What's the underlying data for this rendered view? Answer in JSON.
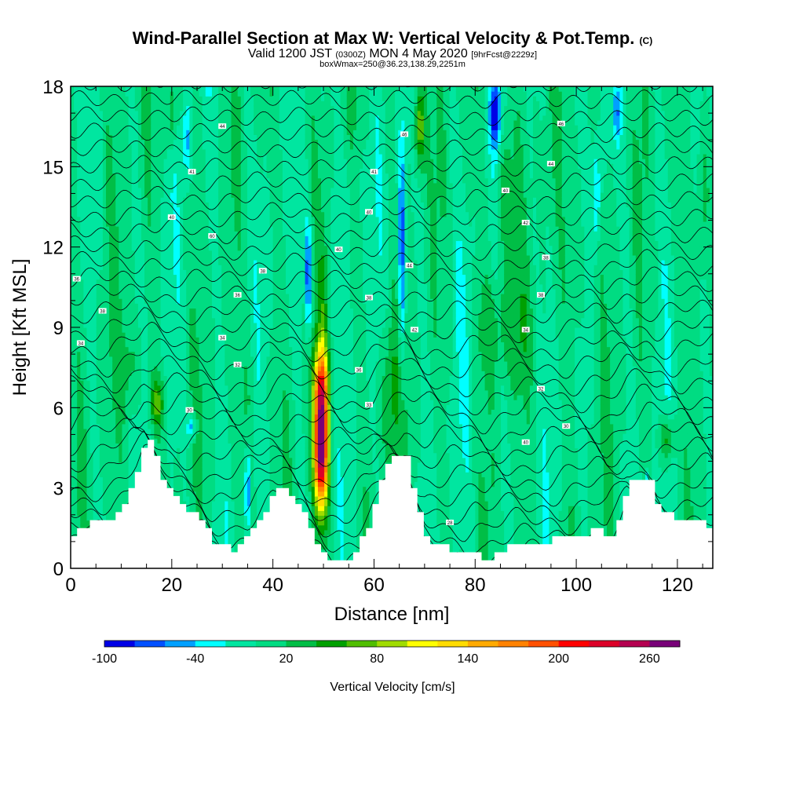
{
  "header": {
    "title": "Wind-Parallel Section at Max W: Vertical Velocity & Pot.Temp.",
    "title_mark": "(C)",
    "valid_prefix": "Valid 1200 JST",
    "valid_utc": "(0300Z)",
    "valid_suffix": "MON 4 May 2020",
    "forecast": "[9hrFcst@2229z]",
    "box": "boxWmax=250@36.23,138.29,2251m"
  },
  "chart_data": {
    "type": "heatmap",
    "xlabel": "Distance [nm]",
    "ylabel": "Height [Kft MSL]",
    "xlim": [
      0,
      127
    ],
    "ylim": [
      0,
      18
    ],
    "x_ticks": [
      0,
      20,
      40,
      60,
      80,
      100,
      120
    ],
    "y_ticks": [
      0,
      3,
      6,
      9,
      12,
      15,
      18
    ],
    "terrain_kft": [
      [
        0,
        1.3
      ],
      [
        2,
        1.6
      ],
      [
        8,
        1.9
      ],
      [
        11,
        2.7
      ],
      [
        13,
        3.6
      ],
      [
        14.5,
        4.9
      ],
      [
        16,
        4.5
      ],
      [
        18,
        3.3
      ],
      [
        20,
        2.7
      ],
      [
        23,
        2.2
      ],
      [
        26,
        1.6
      ],
      [
        28,
        0.9
      ],
      [
        32,
        0.7
      ],
      [
        35,
        1.2
      ],
      [
        38,
        2.2
      ],
      [
        40,
        3.0
      ],
      [
        42,
        3.1
      ],
      [
        44,
        2.6
      ],
      [
        46,
        1.9
      ],
      [
        48,
        1.1
      ],
      [
        50,
        0.5
      ],
      [
        52,
        0.3
      ],
      [
        54,
        0.3
      ],
      [
        57,
        1.0
      ],
      [
        59,
        1.8
      ],
      [
        61,
        3.2
      ],
      [
        63,
        4.2
      ],
      [
        66,
        4.2
      ],
      [
        68,
        2.3
      ],
      [
        70,
        1.1
      ],
      [
        74,
        0.8
      ],
      [
        78,
        0.5
      ],
      [
        80,
        0.7
      ],
      [
        82,
        0.3
      ],
      [
        84,
        0.6
      ],
      [
        88,
        0.9
      ],
      [
        92,
        1.0
      ],
      [
        97,
        1.1
      ],
      [
        101,
        1.3
      ],
      [
        104,
        1.4
      ],
      [
        106,
        1.0
      ],
      [
        108,
        1.8
      ],
      [
        110,
        3.2
      ],
      [
        114,
        3.3
      ],
      [
        116,
        2.3
      ],
      [
        120,
        1.8
      ],
      [
        126,
        1.6
      ],
      [
        127,
        1.3
      ]
    ],
    "velocity_features": [
      {
        "x": 49.5,
        "y": 4.5,
        "sx": 1.4,
        "sy": 2.3,
        "w": 270
      },
      {
        "x": 49.5,
        "y": 7.0,
        "sx": 1.6,
        "sy": 1.5,
        "w": 105
      },
      {
        "x": 50,
        "y": 9.6,
        "sx": 0.9,
        "sy": 3.0,
        "w": 32
      },
      {
        "x": 17,
        "y": 6.2,
        "sx": 1.5,
        "sy": 0.9,
        "w": 60
      },
      {
        "x": 12,
        "y": 7.5,
        "sx": 2.5,
        "sy": 2.0,
        "w": 30
      },
      {
        "x": 118,
        "y": 4.8,
        "sx": 1.5,
        "sy": 0.9,
        "w": 58
      },
      {
        "x": 86,
        "y": 14.0,
        "sx": 1.5,
        "sy": 3.0,
        "w": 40
      },
      {
        "x": 69,
        "y": 16.5,
        "sx": 1.1,
        "sy": 1.6,
        "w": 80
      },
      {
        "x": 20,
        "y": 17.0,
        "sx": 1.0,
        "sy": 1.5,
        "w": 50
      },
      {
        "x": 85,
        "y": 9.0,
        "sx": 6.0,
        "sy": 2.0,
        "w": 30
      },
      {
        "x": 63,
        "y": 6.5,
        "sx": 2.0,
        "sy": 3.0,
        "w": 40
      },
      {
        "x": 100,
        "y": 12.0,
        "sx": 2.0,
        "sy": 4.0,
        "w": 28
      },
      {
        "x": 125,
        "y": 14.0,
        "sx": 1.5,
        "sy": 3.5,
        "w": 40
      },
      {
        "x": 35,
        "y": 6.0,
        "sx": 2.0,
        "sy": 3.0,
        "w": 20
      },
      {
        "x": 47,
        "y": 11.0,
        "sx": 0.6,
        "sy": 2.0,
        "w": -90
      },
      {
        "x": 65.5,
        "y": 12.0,
        "sx": 0.7,
        "sy": 4.5,
        "w": -80
      },
      {
        "x": 84,
        "y": 17.0,
        "sx": 1.0,
        "sy": 1.2,
        "w": -95
      },
      {
        "x": 24,
        "y": 5.3,
        "sx": 0.9,
        "sy": 0.5,
        "w": -60
      },
      {
        "x": 35,
        "y": 3.0,
        "sx": 0.5,
        "sy": 1.5,
        "w": -70
      },
      {
        "x": 114,
        "y": 3.0,
        "sx": 0.4,
        "sy": 0.7,
        "w": -60
      },
      {
        "x": 23,
        "y": 16.0,
        "sx": 0.8,
        "sy": 1.5,
        "w": -50
      },
      {
        "x": 104,
        "y": 14.0,
        "sx": 0.8,
        "sy": 2.0,
        "w": -50
      },
      {
        "x": 108,
        "y": 17.0,
        "sx": 0.6,
        "sy": 1.0,
        "w": -50
      },
      {
        "x": 78,
        "y": 8.5,
        "sx": 2.0,
        "sy": 3.0,
        "w": -15
      },
      {
        "x": 55,
        "y": 14.0,
        "sx": 3.0,
        "sy": 2.0,
        "w": -15
      }
    ],
    "colorbar": {
      "label": "Vertical Velocity [cm/s]",
      "boundaries": [
        -100,
        -80,
        -60,
        -40,
        -20,
        0,
        20,
        40,
        60,
        80,
        100,
        120,
        140,
        160,
        180,
        200,
        220,
        240,
        260,
        280
      ],
      "colors": [
        "#0000e6",
        "#0050ff",
        "#00a0ff",
        "#00ffff",
        "#00e6a0",
        "#00dc82",
        "#00be46",
        "#00a000",
        "#50be00",
        "#a0dc00",
        "#ffff00",
        "#ffdc00",
        "#ffaa00",
        "#ff8200",
        "#ff5000",
        "#ff0000",
        "#dc0028",
        "#b40050",
        "#780078"
      ],
      "tick_labels": [
        {
          "v": -100,
          "t": "-100"
        },
        {
          "v": -40,
          "t": "-40"
        },
        {
          "v": 20,
          "t": "20"
        },
        {
          "v": 80,
          "t": "80"
        },
        {
          "v": 140,
          "t": "140"
        },
        {
          "v": 200,
          "t": "200"
        },
        {
          "v": 260,
          "t": "260"
        }
      ]
    },
    "contour_labels": [
      {
        "x": 1.2,
        "y": 10.8,
        "t": "36"
      },
      {
        "x": 6.3,
        "y": 9.6,
        "t": "38"
      },
      {
        "x": 2,
        "y": 8.4,
        "t": "34"
      },
      {
        "x": 30,
        "y": 16.5,
        "t": "44"
      },
      {
        "x": 24,
        "y": 14.8,
        "t": "41"
      },
      {
        "x": 20,
        "y": 13.1,
        "t": "40"
      },
      {
        "x": 28,
        "y": 12.4,
        "t": "60"
      },
      {
        "x": 38,
        "y": 11.1,
        "t": "38"
      },
      {
        "x": 33,
        "y": 10.2,
        "t": "36"
      },
      {
        "x": 30,
        "y": 8.6,
        "t": "34"
      },
      {
        "x": 33,
        "y": 7.6,
        "t": "32"
      },
      {
        "x": 23.5,
        "y": 5.9,
        "t": "30"
      },
      {
        "x": 53,
        "y": 11.9,
        "t": "40"
      },
      {
        "x": 60,
        "y": 14.8,
        "t": "41"
      },
      {
        "x": 59,
        "y": 13.3,
        "t": "40"
      },
      {
        "x": 59,
        "y": 10.1,
        "t": "38"
      },
      {
        "x": 57,
        "y": 7.4,
        "t": "36"
      },
      {
        "x": 59,
        "y": 6.1,
        "t": "33"
      },
      {
        "x": 66,
        "y": 16.2,
        "t": "46"
      },
      {
        "x": 67,
        "y": 11.3,
        "t": "44"
      },
      {
        "x": 68,
        "y": 8.9,
        "t": "42"
      },
      {
        "x": 86,
        "y": 14.1,
        "t": "40"
      },
      {
        "x": 90,
        "y": 12.9,
        "t": "42"
      },
      {
        "x": 94,
        "y": 11.6,
        "t": "38"
      },
      {
        "x": 93,
        "y": 10.2,
        "t": "38"
      },
      {
        "x": 90,
        "y": 8.9,
        "t": "34"
      },
      {
        "x": 93,
        "y": 6.7,
        "t": "32"
      },
      {
        "x": 97,
        "y": 16.6,
        "t": "46"
      },
      {
        "x": 95,
        "y": 15.1,
        "t": "44"
      },
      {
        "x": 98,
        "y": 5.3,
        "t": "30"
      },
      {
        "x": 90,
        "y": 4.7,
        "t": "40"
      },
      {
        "x": 75,
        "y": 1.7,
        "t": "28"
      }
    ]
  }
}
